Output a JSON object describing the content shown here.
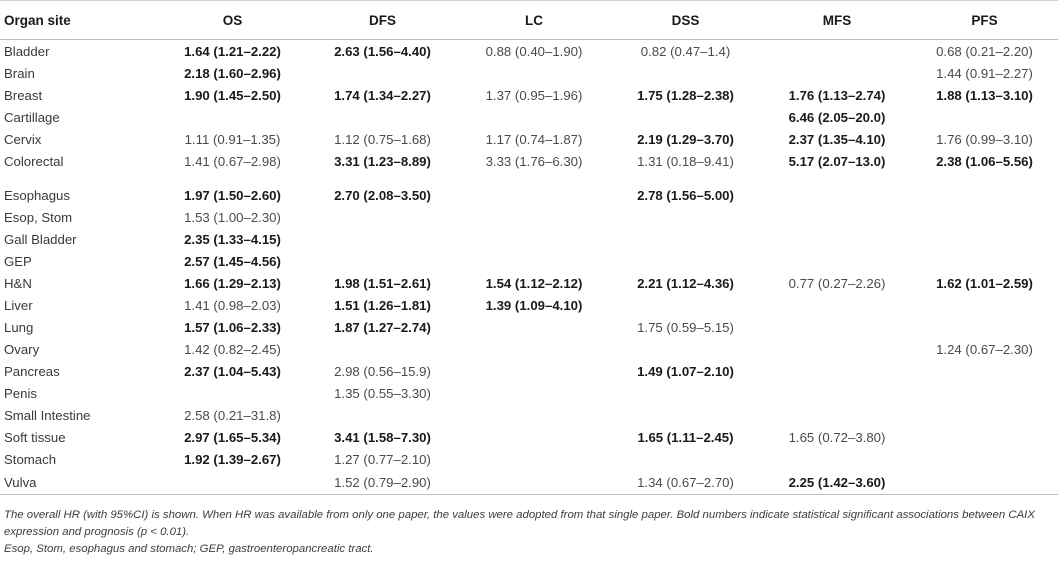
{
  "headers": [
    "Organ site",
    "OS",
    "DFS",
    "LC",
    "DSS",
    "MFS",
    "PFS"
  ],
  "rows": [
    {
      "site": "Bladder",
      "cells": [
        {
          "t": "1.64 (1.21–2.22)",
          "b": true
        },
        {
          "t": "2.63 (1.56–4.40)",
          "b": true
        },
        {
          "t": "0.88 (0.40–1.90)",
          "b": false
        },
        {
          "t": "0.82 (0.47–1.4)",
          "b": false
        },
        {
          "t": "",
          "b": false
        },
        {
          "t": "0.68 (0.21–2.20)",
          "b": false
        }
      ]
    },
    {
      "site": "Brain",
      "cells": [
        {
          "t": "2.18 (1.60–2.96)",
          "b": true
        },
        {
          "t": "",
          "b": false
        },
        {
          "t": "",
          "b": false
        },
        {
          "t": "",
          "b": false
        },
        {
          "t": "",
          "b": false
        },
        {
          "t": "1.44 (0.91–2.27)",
          "b": false
        }
      ]
    },
    {
      "site": "Breast",
      "cells": [
        {
          "t": "1.90 (1.45–2.50)",
          "b": true
        },
        {
          "t": "1.74 (1.34–2.27)",
          "b": true
        },
        {
          "t": "1.37 (0.95–1.96)",
          "b": false
        },
        {
          "t": "1.75 (1.28–2.38)",
          "b": true
        },
        {
          "t": "1.76 (1.13–2.74)",
          "b": true
        },
        {
          "t": "1.88 (1.13–3.10)",
          "b": true
        }
      ]
    },
    {
      "site": "Cartillage",
      "cells": [
        {
          "t": "",
          "b": false
        },
        {
          "t": "",
          "b": false
        },
        {
          "t": "",
          "b": false
        },
        {
          "t": "",
          "b": false
        },
        {
          "t": "6.46 (2.05–20.0)",
          "b": true
        },
        {
          "t": "",
          "b": false
        }
      ]
    },
    {
      "site": "Cervix",
      "cells": [
        {
          "t": "1.11 (0.91–1.35)",
          "b": false
        },
        {
          "t": "1.12 (0.75–1.68)",
          "b": false
        },
        {
          "t": "1.17 (0.74–1.87)",
          "b": false
        },
        {
          "t": "2.19 (1.29–3.70)",
          "b": true
        },
        {
          "t": "2.37 (1.35–4.10)",
          "b": true
        },
        {
          "t": "1.76 (0.99–3.10)",
          "b": false
        }
      ]
    },
    {
      "site": "Colorectal",
      "cells": [
        {
          "t": "1.41 (0.67–2.98)",
          "b": false
        },
        {
          "t": "3.31 (1.23–8.89)",
          "b": true
        },
        {
          "t": "3.33 (1.76–6.30)",
          "b": false
        },
        {
          "t": "1.31 (0.18–9.41)",
          "b": false
        },
        {
          "t": "5.17 (2.07–13.0)",
          "b": true
        },
        {
          "t": "2.38 (1.06–5.56)",
          "b": true
        }
      ]
    },
    {
      "site": "Esophagus",
      "gap": true,
      "cells": [
        {
          "t": "1.97 (1.50–2.60)",
          "b": true
        },
        {
          "t": "2.70 (2.08–3.50)",
          "b": true
        },
        {
          "t": "",
          "b": false
        },
        {
          "t": "2.78 (1.56–5.00)",
          "b": true
        },
        {
          "t": "",
          "b": false
        },
        {
          "t": "",
          "b": false
        }
      ]
    },
    {
      "site": "Esop, Stom",
      "cells": [
        {
          "t": "1.53 (1.00–2.30)",
          "b": false
        },
        {
          "t": "",
          "b": false
        },
        {
          "t": "",
          "b": false
        },
        {
          "t": "",
          "b": false
        },
        {
          "t": "",
          "b": false
        },
        {
          "t": "",
          "b": false
        }
      ]
    },
    {
      "site": "Gall Bladder",
      "cells": [
        {
          "t": "2.35 (1.33–4.15)",
          "b": true
        },
        {
          "t": "",
          "b": false
        },
        {
          "t": "",
          "b": false
        },
        {
          "t": "",
          "b": false
        },
        {
          "t": "",
          "b": false
        },
        {
          "t": "",
          "b": false
        }
      ]
    },
    {
      "site": "GEP",
      "cells": [
        {
          "t": "2.57 (1.45–4.56)",
          "b": true
        },
        {
          "t": "",
          "b": false
        },
        {
          "t": "",
          "b": false
        },
        {
          "t": "",
          "b": false
        },
        {
          "t": "",
          "b": false
        },
        {
          "t": "",
          "b": false
        }
      ]
    },
    {
      "site": "H&N",
      "cells": [
        {
          "t": "1.66 (1.29–2.13)",
          "b": true
        },
        {
          "t": "1.98 (1.51–2.61)",
          "b": true
        },
        {
          "t": "1.54 (1.12–2.12)",
          "b": true
        },
        {
          "t": "2.21 (1.12–4.36)",
          "b": true
        },
        {
          "t": "0.77 (0.27–2.26)",
          "b": false
        },
        {
          "t": "1.62 (1.01–2.59)",
          "b": true
        }
      ]
    },
    {
      "site": "Liver",
      "cells": [
        {
          "t": "1.41 (0.98–2.03)",
          "b": false
        },
        {
          "t": "1.51 (1.26–1.81)",
          "b": true
        },
        {
          "t": "1.39 (1.09–4.10)",
          "b": true
        },
        {
          "t": "",
          "b": false
        },
        {
          "t": "",
          "b": false
        },
        {
          "t": "",
          "b": false
        }
      ]
    },
    {
      "site": "Lung",
      "cells": [
        {
          "t": "1.57 (1.06–2.33)",
          "b": true
        },
        {
          "t": "1.87 (1.27–2.74)",
          "b": true
        },
        {
          "t": "",
          "b": false
        },
        {
          "t": "1.75 (0.59–5.15)",
          "b": false
        },
        {
          "t": "",
          "b": false
        },
        {
          "t": "",
          "b": false
        }
      ]
    },
    {
      "site": "Ovary",
      "cells": [
        {
          "t": "1.42 (0.82–2.45)",
          "b": false
        },
        {
          "t": "",
          "b": false
        },
        {
          "t": "",
          "b": false
        },
        {
          "t": "",
          "b": false
        },
        {
          "t": "",
          "b": false
        },
        {
          "t": "1.24 (0.67–2.30)",
          "b": false
        }
      ]
    },
    {
      "site": "Pancreas",
      "cells": [
        {
          "t": "2.37 (1.04–5.43)",
          "b": true
        },
        {
          "t": "2.98 (0.56–15.9)",
          "b": false
        },
        {
          "t": "",
          "b": false
        },
        {
          "t": "1.49 (1.07–2.10)",
          "b": true
        },
        {
          "t": "",
          "b": false
        },
        {
          "t": "",
          "b": false
        }
      ]
    },
    {
      "site": "Penis",
      "cells": [
        {
          "t": "",
          "b": false
        },
        {
          "t": "1.35 (0.55–3.30)",
          "b": false
        },
        {
          "t": "",
          "b": false
        },
        {
          "t": "",
          "b": false
        },
        {
          "t": "",
          "b": false
        },
        {
          "t": "",
          "b": false
        }
      ]
    },
    {
      "site": "Small Intestine",
      "cells": [
        {
          "t": "2.58 (0.21–31.8)",
          "b": false
        },
        {
          "t": "",
          "b": false
        },
        {
          "t": "",
          "b": false
        },
        {
          "t": "",
          "b": false
        },
        {
          "t": "",
          "b": false
        },
        {
          "t": "",
          "b": false
        }
      ]
    },
    {
      "site": "Soft tissue",
      "cells": [
        {
          "t": "2.97 (1.65–5.34)",
          "b": true
        },
        {
          "t": "3.41 (1.58–7.30)",
          "b": true
        },
        {
          "t": "",
          "b": false
        },
        {
          "t": "1.65 (1.11–2.45)",
          "b": true
        },
        {
          "t": "1.65 (0.72–3.80)",
          "b": false
        },
        {
          "t": "",
          "b": false
        }
      ]
    },
    {
      "site": "Stomach",
      "cells": [
        {
          "t": "1.92 (1.39–2.67)",
          "b": true
        },
        {
          "t": "1.27 (0.77–2.10)",
          "b": false
        },
        {
          "t": "",
          "b": false
        },
        {
          "t": "",
          "b": false
        },
        {
          "t": "",
          "b": false
        },
        {
          "t": "",
          "b": false
        }
      ]
    },
    {
      "site": "Vulva",
      "cells": [
        {
          "t": "",
          "b": false
        },
        {
          "t": "1.52 (0.79–2.90)",
          "b": false
        },
        {
          "t": "",
          "b": false
        },
        {
          "t": "1.34 (0.67–2.70)",
          "b": false
        },
        {
          "t": "2.25 (1.42–3.60)",
          "b": true
        },
        {
          "t": "",
          "b": false
        }
      ]
    }
  ],
  "footnote": {
    "line1": "The overall HR (with 95%CI) is shown. When HR was available from only one paper, the values were adopted from that single paper. Bold numbers indicate statistical significant associations between CAIX expression and prognosis (p < 0.01).",
    "line2": "Esop, Stom, esophagus and stomach; GEP, gastroenteropancreatic tract."
  }
}
